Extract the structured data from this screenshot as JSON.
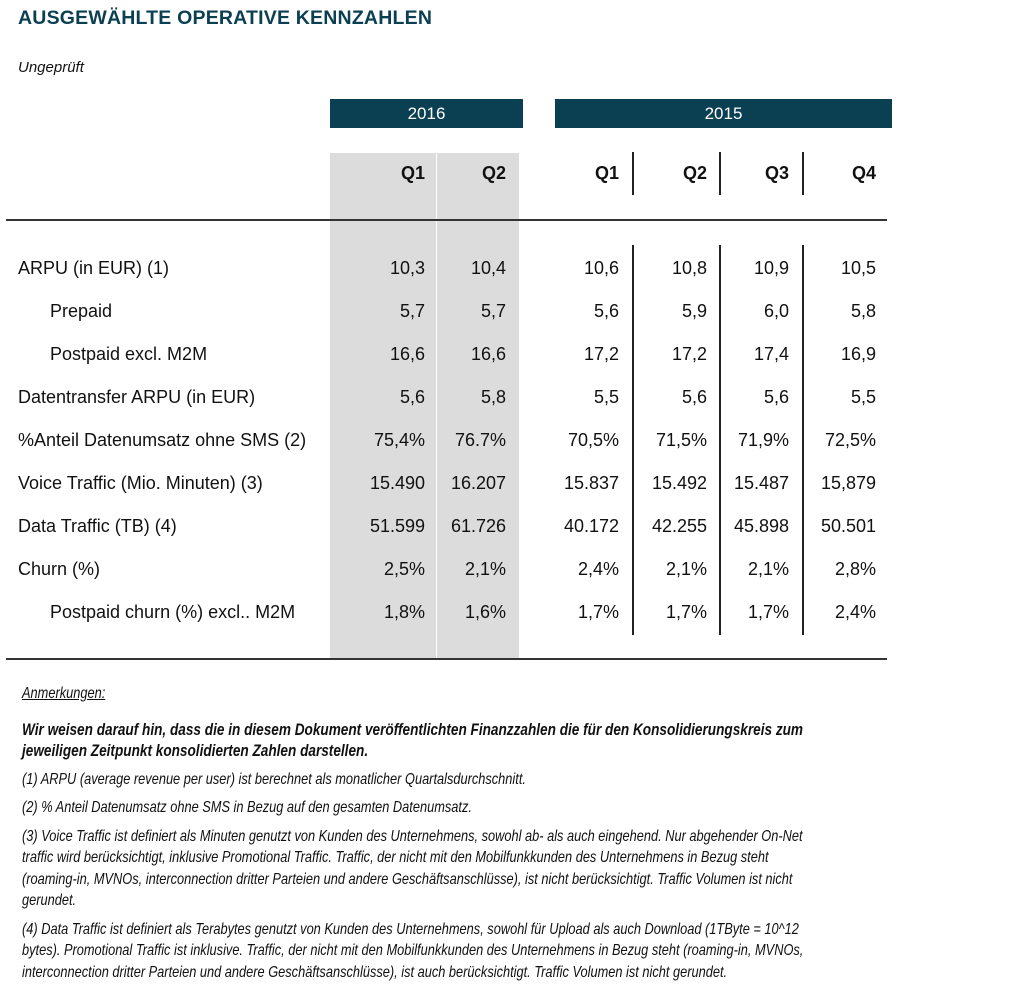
{
  "title": "AUSGEWÄHLTE OPERATIVE KENNZAHLEN",
  "subtitle": "Ungeprüft",
  "colors": {
    "header_bar": "#0b3f52",
    "highlight_column": "#dcdcdc"
  },
  "table": {
    "years": [
      "2016",
      "2015"
    ],
    "quarters": [
      "Q1",
      "Q2",
      "Q1",
      "Q2",
      "Q3",
      "Q4"
    ],
    "rows": [
      {
        "label": "ARPU (in EUR) (1)",
        "indent": false,
        "values": [
          "10,3",
          "10,4",
          "10,6",
          "10,8",
          "10,9",
          "10,5"
        ]
      },
      {
        "label": "Prepaid",
        "indent": true,
        "values": [
          "5,7",
          "5,7",
          "5,6",
          "5,9",
          "6,0",
          "5,8"
        ]
      },
      {
        "label": "Postpaid excl. M2M",
        "indent": true,
        "values": [
          "16,6",
          "16,6",
          "17,2",
          "17,2",
          "17,4",
          "16,9"
        ]
      },
      {
        "label": "Datentransfer ARPU (in EUR)",
        "indent": false,
        "values": [
          "5,6",
          "5,8",
          "5,5",
          "5,6",
          "5,6",
          "5,5"
        ]
      },
      {
        "label": "%Anteil Datenumsatz ohne SMS (2)",
        "indent": false,
        "values": [
          "75,4%",
          "76.7%",
          "70,5%",
          "71,5%",
          "71,9%",
          "72,5%"
        ]
      },
      {
        "label": "Voice Traffic (Mio. Minuten) (3)",
        "indent": false,
        "values": [
          "15.490",
          "16.207",
          "15.837",
          "15.492",
          "15.487",
          "15,879"
        ]
      },
      {
        "label": "Data Traffic (TB) (4)",
        "indent": false,
        "values": [
          "51.599",
          "61.726",
          "40.172",
          "42.255",
          "45.898",
          "50.501"
        ]
      },
      {
        "label": "Churn (%)",
        "indent": false,
        "values": [
          "2,5%",
          "2,1%",
          "2,4%",
          "2,1%",
          "2,1%",
          "2,8%"
        ]
      },
      {
        "label": "Postpaid churn (%) excl.. M2M",
        "indent": true,
        "values": [
          "1,8%",
          "1,6%",
          "1,7%",
          "1,7%",
          "1,7%",
          "2,4%"
        ]
      }
    ]
  },
  "notes": {
    "heading": "Anmerkungen:",
    "bold_lines": [
      "Wir weisen darauf hin, dass die in diesem Dokument veröffentlichten Finanzzahlen die für den Konsolidierungskreis zum",
      "jeweiligen Zeitpunkt konsolidierten Zahlen darstellen."
    ],
    "footnotes": [
      [
        "(1) ARPU (average revenue per user) ist berechnet als monatlicher Quartalsdurchschnitt."
      ],
      [
        "(2) % Anteil Datenumsatz ohne SMS in Bezug auf den gesamten Datenumsatz."
      ],
      [
        "(3) Voice Traffic ist definiert als Minuten genutzt von Kunden des Unternehmens, sowohl ab- als auch eingehend. Nur abgehender On-Net",
        "traffic wird berücksichtigt, inklusive Promotional Traffic. Traffic, der nicht mit den Mobilfunkkunden des Unternehmens in Bezug steht",
        "(roaming-in, MVNOs, interconnection dritter Parteien und andere Geschäftsanschlüsse), ist nicht berücksichtigt. Traffic Volumen ist nicht",
        "gerundet."
      ],
      [
        "(4) Data Traffic ist definiert als Terabytes genutzt von Kunden des Unternehmens, sowohl für Upload als auch Download (1TByte = 10^12",
        "bytes). Promotional Traffic ist inklusive. Traffic, der nicht mit den Mobilfunkkunden des Unternehmens in Bezug steht (roaming-in, MVNOs,",
        "interconnection dritter Parteien und andere Geschäftsanschlüsse), ist auch berücksichtigt. Traffic Volumen ist nicht gerundet."
      ]
    ]
  }
}
